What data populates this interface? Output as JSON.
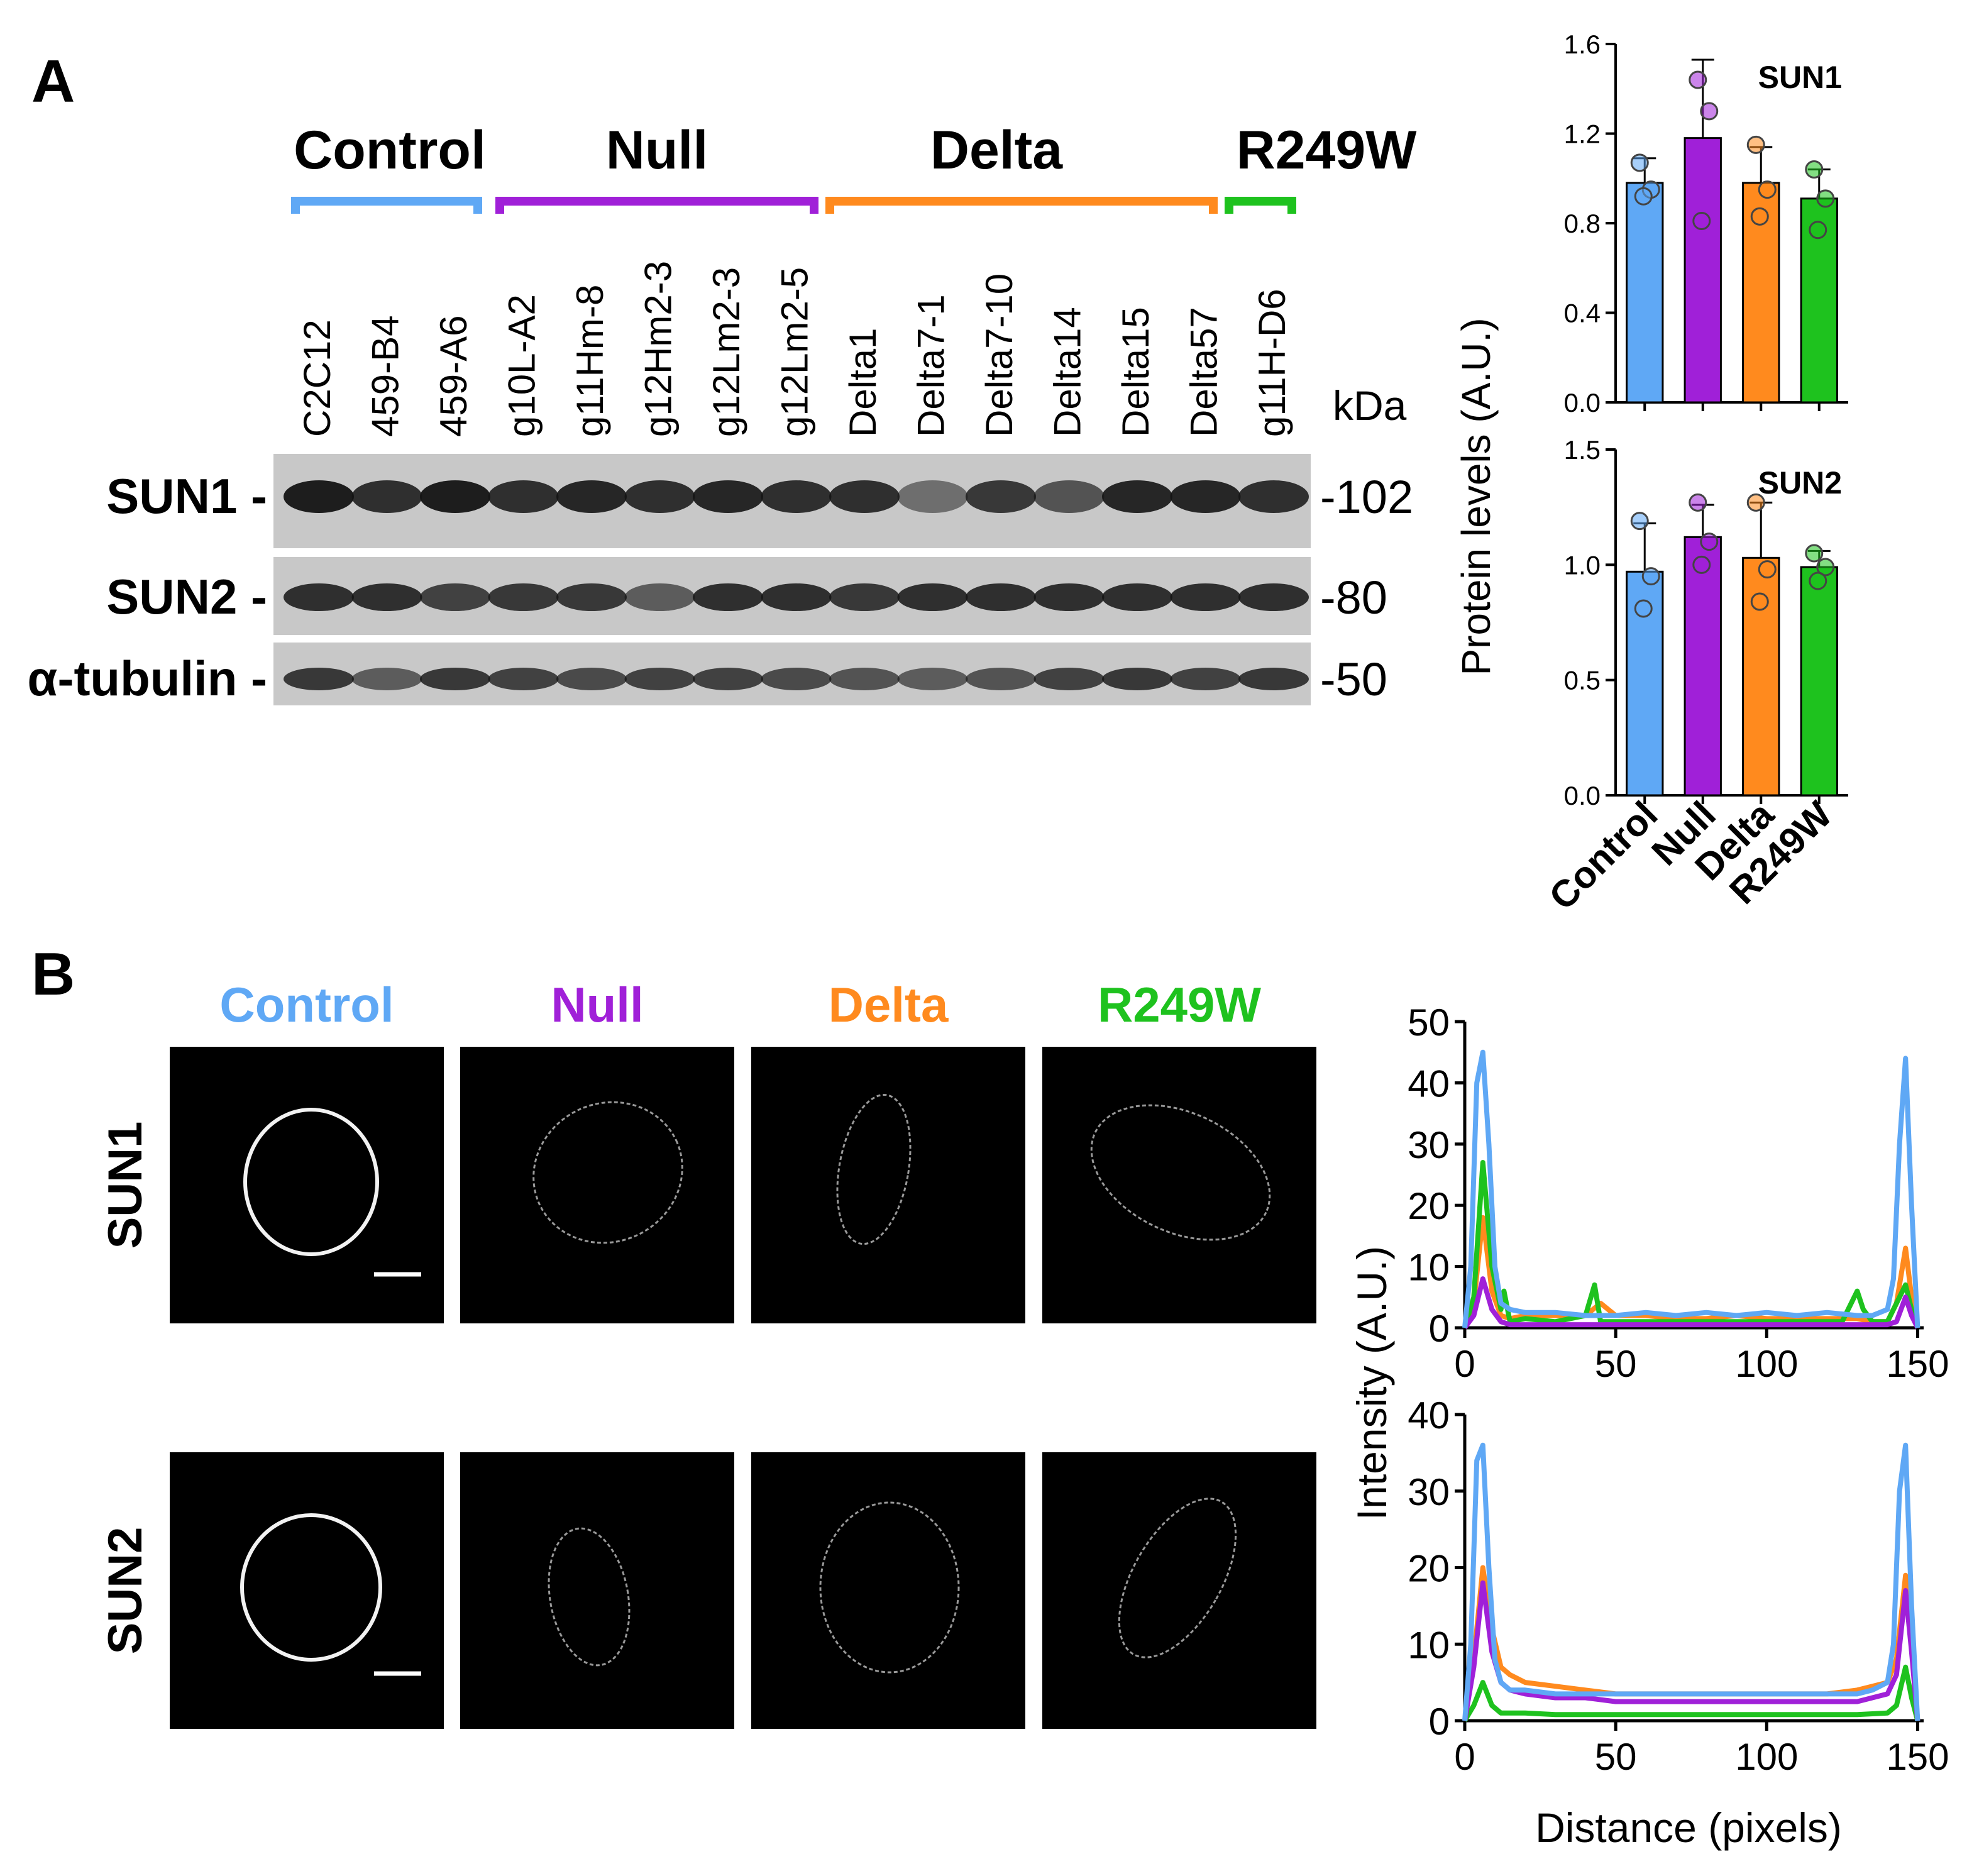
{
  "panel_a": {
    "letter": "A",
    "groups": [
      {
        "label": "Control",
        "color": "#5fa8f5"
      },
      {
        "label": "Null",
        "color": "#a020d8"
      },
      {
        "label": "Delta",
        "color": "#ff8a1e"
      },
      {
        "label": "R249W",
        "color": "#1ec21e"
      }
    ],
    "lanes": [
      "C2C12",
      "459-B4",
      "459-A6",
      "g10L-A2",
      "g11Hm-8",
      "g12Hm2-3",
      "g12Lm2-3",
      "g12Lm2-5",
      "Delta1",
      "Delta7-1",
      "Delta7-10",
      "Delta14",
      "Delta15",
      "Delta57",
      "g11H-D6"
    ],
    "lane_group": [
      0,
      0,
      0,
      1,
      1,
      1,
      1,
      1,
      2,
      2,
      2,
      2,
      2,
      2,
      3
    ],
    "kda_header": "kDa",
    "blots": [
      {
        "label": "SUN1 -",
        "kda": "-102"
      },
      {
        "label": "SUN2 -",
        "kda": "-80"
      },
      {
        "label": "α-tubulin -",
        "kda": "-50"
      }
    ]
  },
  "panel_b": {
    "letter": "B",
    "conditions": [
      {
        "label": "Control",
        "color": "#5fa8f5"
      },
      {
        "label": "Null",
        "color": "#a020d8"
      },
      {
        "label": "Delta",
        "color": "#ff8a1e"
      },
      {
        "label": "R249W",
        "color": "#1ec21e"
      }
    ],
    "rows": [
      "SUN1",
      "SUN2"
    ]
  },
  "chart_data": [
    {
      "type": "bar",
      "title": "SUN1",
      "ylabel": "Protein levels (A.U.)",
      "categories": [
        "Control",
        "Null",
        "Delta",
        "R249W"
      ],
      "colors": [
        "#5fa8f5",
        "#a020d8",
        "#ff8a1e",
        "#1ec21e"
      ],
      "values": [
        0.98,
        1.18,
        0.98,
        0.91
      ],
      "sd": [
        0.11,
        0.35,
        0.16,
        0.13
      ],
      "points": [
        [
          1.07,
          0.95,
          0.92
        ],
        [
          1.44,
          1.3,
          0.81
        ],
        [
          1.15,
          0.95,
          0.83
        ],
        [
          1.04,
          0.91,
          0.77
        ]
      ],
      "ylim": [
        0,
        1.6
      ],
      "yticks": [
        "0.0",
        "0.4",
        "0.8",
        "1.2",
        "1.6"
      ]
    },
    {
      "type": "bar",
      "title": "SUN2",
      "ylabel": "Protein levels (A.U.)",
      "categories": [
        "Control",
        "Null",
        "Delta",
        "R249W"
      ],
      "colors": [
        "#5fa8f5",
        "#a020d8",
        "#ff8a1e",
        "#1ec21e"
      ],
      "values": [
        0.97,
        1.12,
        1.03,
        0.99
      ],
      "sd": [
        0.21,
        0.14,
        0.24,
        0.07
      ],
      "points": [
        [
          1.19,
          0.95,
          0.81
        ],
        [
          1.27,
          1.1,
          1.0
        ],
        [
          1.27,
          0.98,
          0.84
        ],
        [
          1.05,
          0.99,
          0.93
        ]
      ],
      "ylim": [
        0,
        1.5
      ],
      "yticks": [
        "0.0",
        "0.5",
        "1.0",
        "1.5"
      ]
    },
    {
      "type": "line",
      "title": "",
      "ylabel": "Intensity (A.U.)",
      "xlabel": "",
      "xlim": [
        0,
        152
      ],
      "ylim": [
        0,
        50
      ],
      "xticks": [
        "0",
        "50",
        "100",
        "150"
      ],
      "yticks": [
        "0",
        "10",
        "20",
        "30",
        "40",
        "50"
      ],
      "series": [
        {
          "color": "#ff8a1e",
          "x": [
            0,
            3,
            6,
            9,
            12,
            15,
            20,
            30,
            40,
            45,
            50,
            60,
            70,
            80,
            90,
            100,
            110,
            120,
            130,
            135,
            140,
            143,
            146,
            148,
            150
          ],
          "y": [
            0,
            4,
            18,
            6,
            2,
            1.5,
            2,
            2,
            2,
            4,
            2,
            2,
            1.5,
            1.5,
            2,
            1.5,
            1.5,
            1.5,
            1.5,
            1,
            1,
            4,
            13,
            5,
            0
          ]
        },
        {
          "color": "#1ec21e",
          "x": [
            0,
            3,
            6,
            9,
            12,
            13,
            15,
            20,
            30,
            40,
            43,
            45,
            50,
            60,
            80,
            100,
            120,
            125,
            130,
            132,
            135,
            140,
            143,
            146,
            148,
            150
          ],
          "y": [
            0,
            5,
            27,
            10,
            3,
            6,
            1,
            1.5,
            1,
            2,
            7,
            1,
            1,
            1,
            1,
            1,
            1,
            1,
            6,
            3,
            1,
            1,
            4,
            7,
            3,
            0
          ]
        },
        {
          "color": "#a020d8",
          "x": [
            0,
            3,
            6,
            9,
            12,
            15,
            20,
            30,
            50,
            70,
            90,
            110,
            130,
            140,
            143,
            146,
            148,
            150
          ],
          "y": [
            0,
            2,
            8,
            3,
            1,
            0.5,
            0.5,
            0.5,
            0.5,
            0.5,
            0.5,
            0.5,
            0.5,
            0.5,
            1,
            5,
            2,
            0
          ]
        },
        {
          "color": "#5fa8f5",
          "x": [
            0,
            2,
            4,
            6,
            8,
            10,
            12,
            15,
            20,
            30,
            40,
            50,
            60,
            70,
            80,
            90,
            100,
            110,
            120,
            130,
            135,
            140,
            142,
            144,
            146,
            148,
            150
          ],
          "y": [
            0,
            10,
            40,
            45,
            30,
            10,
            4,
            3,
            2.5,
            2.5,
            2,
            2,
            2.5,
            2,
            2.5,
            2,
            2.5,
            2,
            2.5,
            2,
            2,
            3,
            8,
            30,
            44,
            20,
            0
          ]
        }
      ]
    },
    {
      "type": "line",
      "title": "",
      "ylabel": "Intensity (A.U.)",
      "xlabel": "Distance (pixels)",
      "xlim": [
        0,
        152
      ],
      "ylim": [
        0,
        40
      ],
      "xticks": [
        "0",
        "50",
        "100",
        "150"
      ],
      "yticks": [
        "0",
        "10",
        "20",
        "30",
        "40"
      ],
      "series": [
        {
          "color": "#1ec21e",
          "x": [
            0,
            3,
            6,
            9,
            12,
            20,
            30,
            50,
            70,
            90,
            110,
            130,
            140,
            143,
            146,
            148,
            150
          ],
          "y": [
            0,
            2,
            5,
            2,
            1,
            1,
            0.8,
            0.8,
            0.8,
            0.8,
            0.8,
            0.8,
            1,
            2,
            7,
            3,
            0
          ]
        },
        {
          "color": "#ff8a1e",
          "x": [
            0,
            3,
            6,
            9,
            12,
            15,
            20,
            30,
            40,
            50,
            60,
            70,
            80,
            90,
            100,
            110,
            120,
            130,
            135,
            140,
            143,
            146,
            148,
            150
          ],
          "y": [
            0,
            8,
            20,
            12,
            7,
            6,
            5,
            4.5,
            4,
            3.5,
            3.5,
            3.5,
            3.5,
            3.5,
            3.5,
            3.5,
            3.5,
            4,
            4.5,
            5,
            8,
            19,
            10,
            0
          ]
        },
        {
          "color": "#a020d8",
          "x": [
            0,
            3,
            6,
            9,
            12,
            15,
            20,
            30,
            40,
            50,
            60,
            70,
            80,
            90,
            100,
            110,
            120,
            130,
            135,
            140,
            143,
            146,
            148,
            150
          ],
          "y": [
            0,
            7,
            18,
            9,
            5,
            4,
            3.5,
            3,
            3,
            2.5,
            2.5,
            2.5,
            2.5,
            2.5,
            2.5,
            2.5,
            2.5,
            2.5,
            3,
            3.5,
            6,
            17,
            9,
            0
          ]
        },
        {
          "color": "#5fa8f5",
          "x": [
            0,
            2,
            4,
            6,
            8,
            10,
            12,
            15,
            20,
            30,
            40,
            50,
            60,
            70,
            80,
            90,
            100,
            110,
            120,
            130,
            135,
            140,
            142,
            144,
            146,
            148,
            150
          ],
          "y": [
            0,
            10,
            34,
            36,
            20,
            8,
            5,
            4,
            4,
            3.5,
            3.5,
            3.5,
            3.5,
            3.5,
            3.5,
            3.5,
            3.5,
            3.5,
            3.5,
            3.5,
            4,
            5,
            10,
            30,
            36,
            15,
            0
          ]
        }
      ]
    }
  ]
}
